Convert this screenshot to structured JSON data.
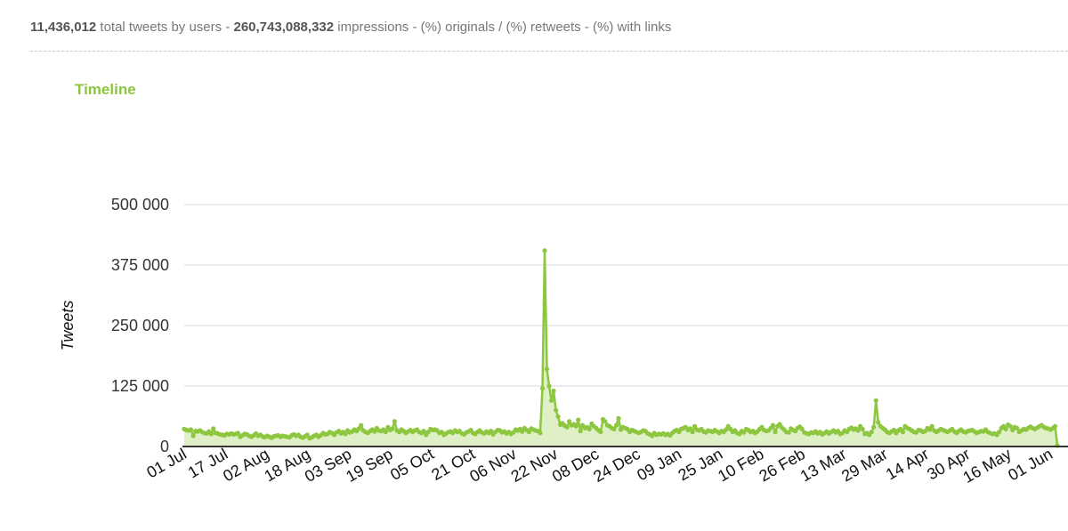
{
  "summary": {
    "total_tweets": "11,436,012",
    "total_tweets_text": " total tweets by users - ",
    "impressions": "260,743,088,332",
    "rest_text": " impressions - (%) originals / (%) retweets - (%) with links"
  },
  "chart_title": "Timeline",
  "colors": {
    "accent": "#8dc63f",
    "fill": "#dff0c6",
    "grid": "#d8d8d8"
  },
  "chart_data": {
    "type": "area",
    "ylabel": "Tweets",
    "xlabel": "",
    "ylim": [
      0,
      500000
    ],
    "yticks": [
      0,
      125000,
      250000,
      375000,
      500000
    ],
    "ytick_labels": [
      "0",
      "125 000",
      "250 000",
      "375 000",
      "500 000"
    ],
    "xticks": [
      "01 Jul",
      "17 Jul",
      "02 Aug",
      "18 Aug",
      "03 Sep",
      "19 Sep",
      "05 Oct",
      "21 Oct",
      "06 Nov",
      "22 Nov",
      "08 Dec",
      "24 Dec",
      "09 Jan",
      "25 Jan",
      "10 Feb",
      "26 Feb",
      "13 Mar",
      "29 Mar",
      "14 Apr",
      "30 Apr",
      "16 May",
      "01 Jun"
    ],
    "grid": true,
    "legend": "none",
    "series": [
      {
        "values": [
          36000,
          34000,
          33000,
          35000,
          22000,
          32000,
          31000,
          33000,
          30000,
          28000,
          27000,
          31000,
          26000,
          37000,
          28000,
          27000,
          25000,
          24000,
          23000,
          26000,
          25000,
          27000,
          25000,
          26000,
          28000,
          20000,
          23000,
          26000,
          25000,
          22000,
          20000,
          23000,
          27000,
          22000,
          24000,
          21000,
          19000,
          22000,
          20000,
          18000,
          21000,
          22000,
          23000,
          20000,
          22000,
          21000,
          20000,
          19000,
          23000,
          25000,
          22000,
          24000,
          20000,
          18000,
          21000,
          24000,
          17000,
          19000,
          22000,
          24000,
          20000,
          23000,
          28000,
          25000,
          26000,
          30000,
          28000,
          24000,
          29000,
          32000,
          27000,
          30000,
          26000,
          33000,
          29000,
          31000,
          35000,
          32000,
          37000,
          44000,
          33000,
          30000,
          28000,
          32000,
          35000,
          31000,
          38000,
          33000,
          32000,
          35000,
          30000,
          40000,
          34000,
          37000,
          52000,
          33000,
          30000,
          35000,
          32000,
          28000,
          31000,
          34000,
          30000,
          33000,
          35000,
          30000,
          28000,
          32000,
          24000,
          30000,
          36000,
          34000,
          35000,
          33000,
          28000,
          30000,
          24000,
          27000,
          30000,
          31000,
          28000,
          33000,
          30000,
          32000,
          27000,
          25000,
          29000,
          31000,
          34000,
          28000,
          26000,
          30000,
          33000,
          29000,
          27000,
          31000,
          28000,
          32000,
          25000,
          30000,
          34000,
          33000,
          29000,
          31000,
          27000,
          30000,
          26000,
          29000,
          35000,
          33000,
          36000,
          31000,
          38000,
          34000,
          30000,
          37000,
          35000,
          33000,
          32000,
          28000,
          120000,
          405000,
          160000,
          125000,
          95000,
          115000,
          75000,
          62000,
          45000,
          48000,
          43000,
          40000,
          52000,
          44000,
          46000,
          42000,
          55000,
          32000,
          44000,
          38000,
          40000,
          36000,
          47000,
          42000,
          38000,
          34000,
          30000,
          56000,
          52000,
          44000,
          42000,
          38000,
          36000,
          44000,
          58000,
          35000,
          40000,
          38000,
          36000,
          30000,
          34000,
          32000,
          30000,
          28000,
          30000,
          33000,
          32000,
          27000,
          25000,
          22000,
          28000,
          24000,
          26000,
          25000,
          27000,
          24000,
          26000,
          23000,
          28000,
          32000,
          34000,
          30000,
          36000,
          38000,
          40000,
          34000,
          37000,
          30000,
          42000,
          35000,
          33000,
          36000,
          31000,
          29000,
          33000,
          32000,
          30000,
          34000,
          31000,
          28000,
          32000,
          30000,
          35000,
          42000,
          36000,
          30000,
          33000,
          28000,
          26000,
          32000,
          29000,
          36000,
          34000,
          30000,
          32000,
          28000,
          31000,
          36000,
          40000,
          34000,
          32000,
          33000,
          38000,
          44000,
          30000,
          42000,
          46000,
          39000,
          35000,
          30000,
          29000,
          37000,
          34000,
          32000,
          38000,
          41000,
          36000,
          29000,
          27000,
          26000,
          29000,
          28000,
          31000,
          27000,
          30000,
          25000,
          28000,
          31000,
          27000,
          30000,
          33000,
          29000,
          32000,
          26000,
          28000,
          33000,
          30000,
          36000,
          39000,
          35000,
          37000,
          33000,
          42000,
          36000,
          26000,
          28000,
          24000,
          30000,
          40000,
          95000,
          50000,
          42000,
          38000,
          35000,
          30000,
          28000,
          31000,
          34000,
          28000,
          33000,
          36000,
          30000,
          42000,
          38000,
          36000,
          33000,
          30000,
          29000,
          34000,
          33000,
          30000,
          32000,
          38000,
          35000,
          42000,
          33000,
          30000,
          33000,
          36000,
          34000,
          32000,
          30000,
          33000,
          36000,
          31000,
          28000,
          32000,
          35000,
          31000,
          29000,
          32000,
          33000,
          34000,
          31000,
          28000,
          30000,
          32000,
          31000,
          35000,
          30000,
          28000,
          26000,
          27000,
          24000,
          30000,
          38000,
          42000,
          36000,
          45000,
          42000,
          34000,
          40000,
          38000,
          30000,
          33000,
          36000,
          35000,
          38000,
          41000,
          38000,
          36000,
          39000,
          42000,
          44000,
          40000,
          38000,
          37000,
          35000,
          38000,
          42000,
          2000
        ]
      }
    ]
  }
}
